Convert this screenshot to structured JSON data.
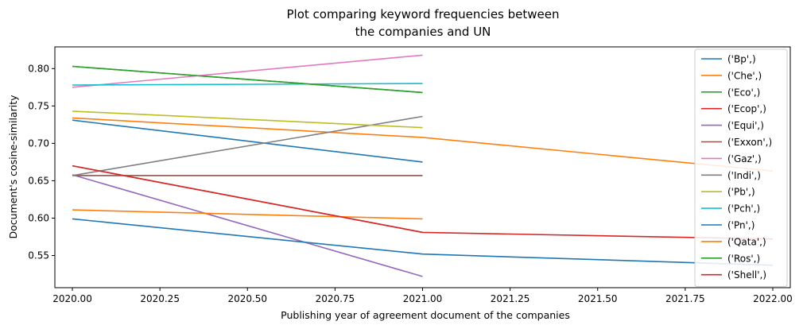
{
  "chart_data": {
    "type": "line",
    "title_lines": [
      "Plot comparing keyword frequencies between",
      "the companies and UN"
    ],
    "xlabel": "Publishing year of agreement document of the companies",
    "ylabel": "Document's cosine-similarity",
    "xlim": [
      2019.95,
      2022.05
    ],
    "ylim": [
      0.507,
      0.829
    ],
    "xticks": [
      "2020.00",
      "2020.25",
      "2020.50",
      "2020.75",
      "2021.00",
      "2021.25",
      "2021.50",
      "2021.75",
      "2022.00"
    ],
    "yticks": [
      "0.55",
      "0.60",
      "0.65",
      "0.70",
      "0.75",
      "0.80"
    ],
    "legend_position": "upper-right",
    "series": [
      {
        "name": "('Bp',)",
        "color": "#1f77b4",
        "x": [
          2020,
          2021
        ],
        "y": [
          0.731,
          0.675
        ]
      },
      {
        "name": "('Che',)",
        "color": "#ff7f0e",
        "x": [
          2020,
          2021,
          2022
        ],
        "y": [
          0.734,
          0.708,
          0.663
        ]
      },
      {
        "name": "('Eco',)",
        "color": "#2ca02c",
        "x": [
          2020,
          2021
        ],
        "y": [
          0.803,
          0.768
        ]
      },
      {
        "name": "('Ecop',)",
        "color": "#d62728",
        "x": [
          2020,
          2021
        ],
        "y": [
          0.67,
          0.581
        ]
      },
      {
        "name": "('Equi',)",
        "color": "#9467bd",
        "x": [
          2020,
          2021
        ],
        "y": [
          0.658,
          0.522
        ]
      },
      {
        "name": "('Exxon',)",
        "color": "#8c564b",
        "x": [
          2020,
          2021
        ],
        "y": [
          0.657,
          0.657
        ]
      },
      {
        "name": "('Gaz',)",
        "color": "#e377c2",
        "x": [
          2020,
          2021
        ],
        "y": [
          0.775,
          0.818
        ]
      },
      {
        "name": "('Indi',)",
        "color": "#7f7f7f",
        "x": [
          2020,
          2021
        ],
        "y": [
          0.657,
          0.736
        ]
      },
      {
        "name": "('Pb',)",
        "color": "#bcbd22",
        "x": [
          2020,
          2021
        ],
        "y": [
          0.743,
          0.721
        ]
      },
      {
        "name": "('Pch',)",
        "color": "#17becf",
        "x": [
          2020,
          2021
        ],
        "y": [
          0.778,
          0.78
        ]
      },
      {
        "name": "('Pn',)",
        "color": "#1f77b4",
        "x": [
          2020,
          2021,
          2022
        ],
        "y": [
          0.599,
          0.552,
          0.537
        ]
      },
      {
        "name": "('Qata',)",
        "color": "#ff7f0e",
        "x": [
          2020,
          2021
        ],
        "y": [
          0.611,
          0.599
        ]
      },
      {
        "name": "('Ros',)",
        "color": "#2ca02c",
        "x": [
          2020,
          2021
        ],
        "y": [
          0.803,
          0.768
        ]
      },
      {
        "name": "('Shell',)",
        "color": "#d62728",
        "x": [
          2020,
          2021,
          2022
        ],
        "y": [
          0.67,
          0.581,
          0.572
        ]
      }
    ]
  }
}
